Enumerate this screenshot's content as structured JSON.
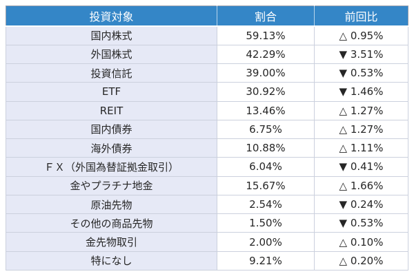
{
  "table": {
    "columns": [
      {
        "label": "投資対象"
      },
      {
        "label": "割合"
      },
      {
        "label": "前回比"
      }
    ],
    "rows": [
      {
        "target": "国内株式",
        "ratio": "59.13%",
        "change": "△ 0.95%",
        "direction": "up"
      },
      {
        "target": "外国株式",
        "ratio": "42.29%",
        "change": "▼ 3.51%",
        "direction": "down"
      },
      {
        "target": "投資信託",
        "ratio": "39.00%",
        "change": "▼ 0.53%",
        "direction": "down"
      },
      {
        "target": "ETF",
        "ratio": "30.92%",
        "change": "▼ 1.46%",
        "direction": "down"
      },
      {
        "target": "REIT",
        "ratio": "13.46%",
        "change": "△ 1.27%",
        "direction": "up"
      },
      {
        "target": "国内債券",
        "ratio": "6.75%",
        "change": "△ 1.27%",
        "direction": "up"
      },
      {
        "target": "海外債券",
        "ratio": "10.88%",
        "change": "△ 1.11%",
        "direction": "up"
      },
      {
        "target": "ＦＸ（外国為替証拠金取引）",
        "ratio": "6.04%",
        "change": "▼ 0.41%",
        "direction": "down"
      },
      {
        "target": "金やプラチナ地金",
        "ratio": "15.67%",
        "change": "△ 1.66%",
        "direction": "up"
      },
      {
        "target": "原油先物",
        "ratio": "2.54%",
        "change": "▼ 0.24%",
        "direction": "down"
      },
      {
        "target": "その他の商品先物",
        "ratio": "1.50%",
        "change": "▼ 0.53%",
        "direction": "down"
      },
      {
        "target": "金先物取引",
        "ratio": "2.00%",
        "change": "△ 0.10%",
        "direction": "up"
      },
      {
        "target": "特になし",
        "ratio": "9.21%",
        "change": "△ 0.20%",
        "direction": "up"
      }
    ],
    "colors": {
      "header_bg": "#3486C7",
      "header_text": "#FFFFFF",
      "row_label_bg": "#E6E9F6",
      "cell_bg": "#FFFFFF",
      "grid_border": "#CBD0DD",
      "outer_border": "#9AA1AE",
      "text": "#262626",
      "page_bg": "#FFFFFF"
    }
  }
}
